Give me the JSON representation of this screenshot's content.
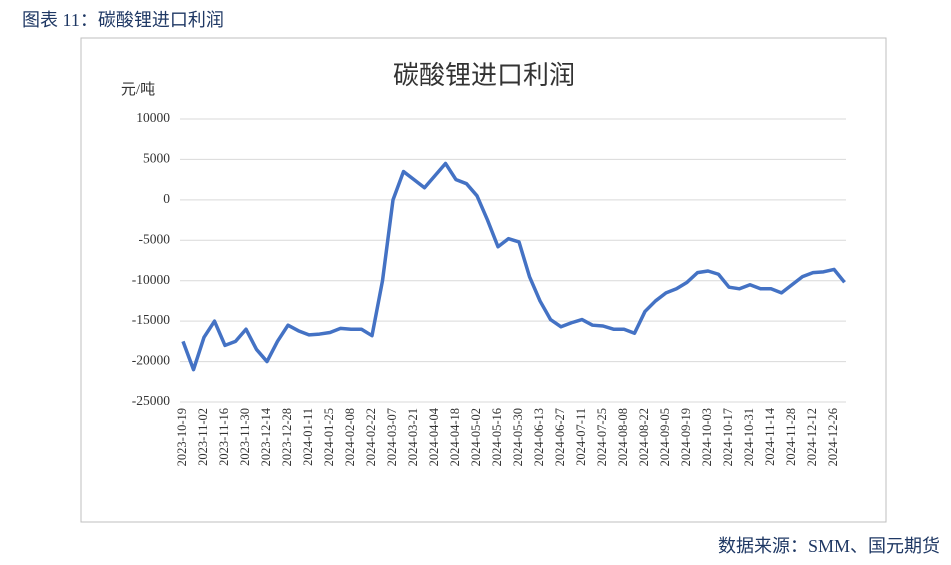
{
  "header": {
    "title": "图表 11：碳酸锂进口利润"
  },
  "footer": {
    "source": "数据来源：SMM、国元期货"
  },
  "chart_data": {
    "type": "line",
    "title": "碳酸锂进口利润",
    "y_label": "元/吨",
    "categories": [
      "2023-10-19",
      null,
      "2023-11-02",
      null,
      "2023-11-16",
      null,
      "2023-11-30",
      null,
      "2023-12-14",
      null,
      "2023-12-28",
      null,
      "2024-01-11",
      null,
      "2024-01-25",
      null,
      "2024-02-08",
      null,
      "2024-02-22",
      null,
      "2024-03-07",
      null,
      "2024-03-21",
      null,
      "2024-04-04",
      null,
      "2024-04-18",
      null,
      "2024-05-02",
      null,
      "2024-05-16",
      null,
      "2024-05-30",
      null,
      "2024-06-13",
      null,
      "2024-06-27",
      null,
      "2024-07-11",
      null,
      "2024-07-25",
      null,
      "2024-08-08",
      null,
      "2024-08-22",
      null,
      "2024-09-05",
      null,
      "2024-09-19",
      null,
      "2024-10-03",
      null,
      "2024-10-17",
      null,
      "2024-10-31",
      null,
      "2024-11-14",
      null,
      "2024-11-28",
      null,
      "2024-12-12",
      null,
      "2024-12-26",
      null
    ],
    "values": [
      -17500,
      -21000,
      -17000,
      -15000,
      -18000,
      -17500,
      -16000,
      -18500,
      -20000,
      -17500,
      -15500,
      -16200,
      -16700,
      -16600,
      -16400,
      -15900,
      -16000,
      -16000,
      -16800,
      -10000,
      0,
      3500,
      2500,
      1500,
      3000,
      4500,
      2500,
      2000,
      500,
      -2500,
      -5800,
      -4800,
      -5200,
      -9500,
      -12500,
      -14800,
      -15700,
      -15200,
      -14800,
      -15500,
      -15600,
      -16000,
      -16000,
      -16500,
      -13800,
      -12500,
      -11500,
      -11000,
      -10200,
      -9000,
      -8800,
      -9200,
      -10800,
      -11000,
      -10500,
      -11000,
      -11000,
      -11500,
      -10500,
      -9500,
      -9000,
      -8900,
      -8600,
      -10200
    ],
    "color": "#4472c4",
    "ylim": [
      -25000,
      10000
    ],
    "yticks": [
      -25000,
      -20000,
      -15000,
      -10000,
      -5000,
      0,
      5000,
      10000
    ],
    "grid": true
  }
}
